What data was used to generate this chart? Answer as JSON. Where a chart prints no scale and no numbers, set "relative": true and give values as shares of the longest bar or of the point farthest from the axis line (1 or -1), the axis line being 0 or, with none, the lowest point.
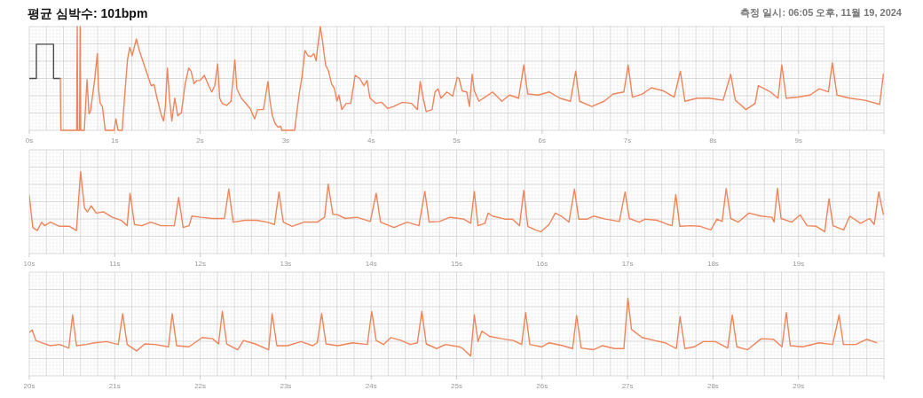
{
  "chart_data": [
    {
      "type": "line",
      "title": "평균 심박수: 101bpm",
      "subtitle": "측정 일시: 06:05 오후, 11월 19, 2024",
      "relative": true,
      "grid": true,
      "tick_labels": "x",
      "xlim": [
        0,
        10
      ],
      "xticks": [
        {
          "value": 0,
          "label": "0s"
        },
        {
          "value": 1,
          "label": "1s"
        },
        {
          "value": 2,
          "label": "2s"
        },
        {
          "value": 3,
          "label": "3s"
        },
        {
          "value": 4,
          "label": "4s"
        },
        {
          "value": 5,
          "label": "5s"
        },
        {
          "value": 6,
          "label": "6s"
        },
        {
          "value": 7,
          "label": "7s"
        },
        {
          "value": 8,
          "label": "8s"
        },
        {
          "value": 9,
          "label": "9s"
        }
      ],
      "series": [
        {
          "color": "#4a4a4a",
          "x": [
            0,
            0.083,
            0.083,
            0.284,
            0.284,
            0.363
          ],
          "values": [
            0.5,
            0.5,
            0.83,
            0.83,
            0.5,
            0.5
          ]
        },
        {
          "color": "#f0845a",
          "x": [
            0.363,
            0.37,
            0.554,
            0.561,
            0.567,
            0.588,
            0.595,
            0.602,
            0.644,
            0.675,
            0.699,
            0.716,
            0.768,
            0.796,
            0.81,
            0.83,
            0.855,
            0.889,
            0.993,
            1.014,
            1.038,
            1.087,
            1.114,
            1.149,
            1.176,
            1.204,
            1.253,
            1.287,
            1.356,
            1.426,
            1.46,
            1.495,
            1.547,
            1.571,
            1.592,
            1.616,
            1.64,
            1.668,
            1.702,
            1.737,
            1.779,
            1.824,
            1.865,
            1.893,
            1.927,
            1.962,
            1.997,
            2.048,
            2.1,
            2.135,
            2.17,
            2.204,
            2.228,
            2.256,
            2.308,
            2.36,
            2.405,
            2.429,
            2.481,
            2.533,
            2.585,
            2.637,
            2.671,
            2.74,
            2.792,
            2.817,
            2.844,
            2.879,
            2.913,
            2.941,
            2.955,
            3.104,
            3.156,
            3.19,
            3.225,
            3.26,
            3.294,
            3.329,
            3.356,
            3.381,
            3.405,
            3.433,
            3.467,
            3.502,
            3.536,
            3.571,
            3.599,
            3.623,
            3.657,
            3.709,
            3.761,
            3.813,
            3.865,
            3.917,
            3.952,
            3.986,
            4.055,
            4.125,
            4.194,
            4.263,
            4.367,
            4.471,
            4.54,
            4.574,
            4.609,
            4.644,
            4.713,
            4.747,
            4.782,
            4.817,
            4.886,
            4.955,
            5.007,
            5.029,
            5.064,
            5.118,
            5.15,
            5.182,
            5.207,
            5.261,
            5.332,
            5.421,
            5.529,
            5.618,
            5.725,
            5.786,
            5.832,
            5.957,
            6.082,
            6.207,
            6.332,
            6.393,
            6.439,
            6.582,
            6.725,
            6.832,
            6.957,
            7.007,
            7.057,
            7.171,
            7.279,
            7.421,
            7.546,
            7.618,
            7.671,
            7.814,
            7.957,
            8.118,
            8.207,
            8.261,
            8.386,
            8.493,
            8.529,
            8.671,
            8.761,
            8.804,
            8.857,
            8.993,
            9.136,
            9.243,
            9.35,
            9.396,
            9.45,
            9.6,
            9.779,
            9.95,
            9.993
          ],
          "values": [
            0.5,
            0,
            0,
            1,
            0,
            0,
            1,
            0,
            0,
            0.49,
            0.16,
            0.18,
            0.51,
            0.74,
            0.4,
            0.26,
            0.23,
            0,
            0,
            0.11,
            0,
            0,
            0.31,
            0.68,
            0.8,
            0.72,
            0.88,
            0.77,
            0.6,
            0.43,
            0.44,
            0.31,
            0.14,
            0.09,
            0.23,
            0.6,
            0.31,
            0.09,
            0.31,
            0.14,
            0.17,
            0.45,
            0.6,
            0.57,
            0.45,
            0.48,
            0.48,
            0.53,
            0.43,
            0.37,
            0.43,
            0.64,
            0.31,
            0.26,
            0.24,
            0.28,
            0.68,
            0.4,
            0.31,
            0.26,
            0.21,
            0.11,
            0.2,
            0.2,
            0.47,
            0.28,
            0.14,
            0.06,
            0.03,
            0.04,
            0,
            0,
            0.34,
            0.51,
            0.77,
            0.72,
            0.71,
            0.74,
            0.67,
            0.85,
            1,
            0.85,
            0.63,
            0.57,
            0.45,
            0.4,
            0.28,
            0.34,
            0.2,
            0.26,
            0.26,
            0.53,
            0.5,
            0.43,
            0.48,
            0.31,
            0.26,
            0.27,
            0.21,
            0.23,
            0.27,
            0.26,
            0.2,
            0.47,
            0.31,
            0.18,
            0.2,
            0.37,
            0.4,
            0.31,
            0.37,
            0.33,
            0.51,
            0.5,
            0.38,
            0.37,
            0.23,
            0.54,
            0.38,
            0.28,
            0.32,
            0.37,
            0.28,
            0.34,
            0.31,
            0.63,
            0.35,
            0.34,
            0.37,
            0.31,
            0.28,
            0.57,
            0.28,
            0.23,
            0.28,
            0.35,
            0.37,
            0.63,
            0.32,
            0.35,
            0.41,
            0.38,
            0.32,
            0.57,
            0.28,
            0.31,
            0.31,
            0.29,
            0.54,
            0.29,
            0.2,
            0.26,
            0.43,
            0.37,
            0.31,
            0.63,
            0.31,
            0.32,
            0.34,
            0.4,
            0.37,
            0.65,
            0.34,
            0.31,
            0.29,
            0.25,
            0.54
          ]
        }
      ]
    },
    {
      "type": "line",
      "relative": true,
      "grid": true,
      "tick_labels": "x",
      "xlim": [
        10,
        20
      ],
      "xticks": [
        {
          "value": 10,
          "label": "10s"
        },
        {
          "value": 11,
          "label": "11s"
        },
        {
          "value": 12,
          "label": "12s"
        },
        {
          "value": 13,
          "label": "13s"
        },
        {
          "value": 14,
          "label": "14s"
        },
        {
          "value": 15,
          "label": "15s"
        },
        {
          "value": 16,
          "label": "16s"
        },
        {
          "value": 17,
          "label": "17s"
        },
        {
          "value": 18,
          "label": "18s"
        },
        {
          "value": 19,
          "label": "19s"
        }
      ],
      "series": [
        {
          "color": "#f0845a",
          "x": [
            10,
            10.041,
            10.093,
            10.145,
            10.179,
            10.248,
            10.352,
            10.472,
            10.552,
            10.6,
            10.645,
            10.679,
            10.724,
            10.783,
            10.869,
            10.972,
            11.076,
            11.145,
            11.179,
            11.231,
            11.317,
            11.421,
            11.541,
            11.697,
            11.748,
            11.8,
            11.869,
            11.903,
            12.007,
            12.145,
            12.283,
            12.334,
            12.386,
            12.524,
            12.662,
            12.783,
            12.869,
            12.921,
            12.972,
            13.076,
            13.214,
            13.369,
            13.455,
            13.497,
            13.552,
            13.61,
            13.697,
            13.834,
            13.99,
            14.059,
            14.11,
            14.266,
            14.421,
            14.559,
            14.628,
            14.679,
            14.8,
            14.921,
            15.034,
            15.082,
            15.164,
            15.207,
            15.25,
            15.332,
            15.368,
            15.421,
            15.564,
            15.654,
            15.736,
            15.786,
            15.832,
            15.921,
            15.986,
            16.082,
            16.154,
            16.225,
            16.314,
            16.379,
            16.429,
            16.529,
            16.6,
            16.743,
            16.904,
            16.971,
            17.021,
            17.136,
            17.207,
            17.35,
            17.475,
            17.521,
            17.564,
            17.611,
            17.743,
            17.85,
            17.975,
            18.046,
            18.107,
            18.154,
            18.207,
            18.296,
            18.421,
            18.564,
            18.689,
            18.714,
            18.754,
            18.796,
            18.921,
            19.021,
            19.1,
            19.207,
            19.307,
            19.357,
            19.404,
            19.529,
            19.6,
            19.725,
            19.832,
            19.886,
            19.939,
            19.993
          ],
          "values": [
            0.6,
            0.07,
            0.02,
            0.16,
            0.1,
            0.16,
            0.09,
            0.09,
            0.02,
            1,
            0.4,
            0.33,
            0.43,
            0.31,
            0.33,
            0.24,
            0.19,
            0.1,
            0.64,
            0.12,
            0.1,
            0.16,
            0.1,
            0.1,
            0.57,
            0.07,
            0.1,
            0.26,
            0.24,
            0.22,
            0.22,
            0.71,
            0.16,
            0.19,
            0.19,
            0.16,
            0.12,
            0.66,
            0.16,
            0.09,
            0.16,
            0.16,
            0.24,
            0.79,
            0.29,
            0.28,
            0.22,
            0.24,
            0.17,
            0.64,
            0.16,
            0.07,
            0.16,
            0.1,
            0.67,
            0.16,
            0.17,
            0.24,
            0.22,
            0.21,
            0.14,
            0.67,
            0.1,
            0.14,
            0.31,
            0.26,
            0.21,
            0.21,
            0.1,
            0.69,
            0.09,
            0.03,
            0,
            0.12,
            0.31,
            0.26,
            0.16,
            0.71,
            0.21,
            0.21,
            0.26,
            0.21,
            0.17,
            0.66,
            0.22,
            0.16,
            0.21,
            0.19,
            0.12,
            0.1,
            0.62,
            0.09,
            0.1,
            0.09,
            0.03,
            0.21,
            0.17,
            0.72,
            0.22,
            0.16,
            0.31,
            0.26,
            0.24,
            0.16,
            0.72,
            0.22,
            0.16,
            0.28,
            0.1,
            0.09,
            0,
            0.55,
            0.1,
            0.03,
            0.26,
            0.14,
            0.22,
            0.12,
            0.66,
            0.29
          ]
        }
      ]
    },
    {
      "type": "line",
      "relative": true,
      "grid": true,
      "tick_labels": "x",
      "xlim": [
        20,
        30
      ],
      "xticks": [
        {
          "value": 20,
          "label": "20s"
        },
        {
          "value": 21,
          "label": "21s"
        },
        {
          "value": 22,
          "label": "22s"
        },
        {
          "value": 23,
          "label": "23s"
        },
        {
          "value": 24,
          "label": "24s"
        },
        {
          "value": 25,
          "label": "25s"
        },
        {
          "value": 26,
          "label": "26s"
        },
        {
          "value": 27,
          "label": "27s"
        },
        {
          "value": 28,
          "label": "28s"
        },
        {
          "value": 29,
          "label": "29s"
        }
      ],
      "series": [
        {
          "color": "#f0845a",
          "x": [
            20,
            20.034,
            20.076,
            20.145,
            20.248,
            20.352,
            20.462,
            20.507,
            20.552,
            20.662,
            20.766,
            20.903,
            21.041,
            21.093,
            21.145,
            21.255,
            21.352,
            21.472,
            21.628,
            21.672,
            21.724,
            21.869,
            22.024,
            22.145,
            22.214,
            22.259,
            22.31,
            22.438,
            22.507,
            22.645,
            22.8,
            22.841,
            22.897,
            23.024,
            23.179,
            23.317,
            23.369,
            23.421,
            23.472,
            23.61,
            23.783,
            23.955,
            24.007,
            24.059,
            24.145,
            24.231,
            24.352,
            24.455,
            24.541,
            24.593,
            24.645,
            24.766,
            24.869,
            25.034,
            25.064,
            25.164,
            25.207,
            25.25,
            25.296,
            25.386,
            25.529,
            25.664,
            25.761,
            25.807,
            25.857,
            25.993,
            26.082,
            26.243,
            26.357,
            26.404,
            26.457,
            26.6,
            26.707,
            26.85,
            26.957,
            27.004,
            27.046,
            27.171,
            27.314,
            27.439,
            27.571,
            27.614,
            27.671,
            27.779,
            27.886,
            28.029,
            28.171,
            28.225,
            28.279,
            28.404,
            28.564,
            28.707,
            28.807,
            28.857,
            28.904,
            29.05,
            29.239,
            29.4,
            29.475,
            29.525,
            29.671,
            29.796,
            29.914
          ],
          "values": [
            0.41,
            0.45,
            0.27,
            0.23,
            0.18,
            0.2,
            0.14,
            0.71,
            0.18,
            0.2,
            0.23,
            0.25,
            0.2,
            0.73,
            0.2,
            0.09,
            0.21,
            0.2,
            0.16,
            0.73,
            0.18,
            0.16,
            0.32,
            0.3,
            0.21,
            0.77,
            0.21,
            0.11,
            0.27,
            0.21,
            0.11,
            0.73,
            0.18,
            0.18,
            0.25,
            0.18,
            0.23,
            0.73,
            0.21,
            0.18,
            0.23,
            0.2,
            0.77,
            0.27,
            0.2,
            0.32,
            0.27,
            0.2,
            0.23,
            0.77,
            0.21,
            0.13,
            0.2,
            0.16,
            0.14,
            0,
            0.71,
            0.25,
            0.43,
            0.34,
            0.3,
            0.27,
            0.2,
            0.75,
            0.2,
            0.16,
            0.23,
            0.18,
            0.13,
            0.7,
            0.14,
            0.11,
            0.18,
            0.13,
            0.13,
            1,
            0.46,
            0.32,
            0.27,
            0.23,
            0.13,
            0.68,
            0.13,
            0.16,
            0.25,
            0.25,
            0.14,
            0.71,
            0.16,
            0.11,
            0.3,
            0.29,
            0.16,
            0.75,
            0.18,
            0.16,
            0.23,
            0.2,
            0.71,
            0.2,
            0.2,
            0.29,
            0.23
          ]
        }
      ]
    }
  ]
}
